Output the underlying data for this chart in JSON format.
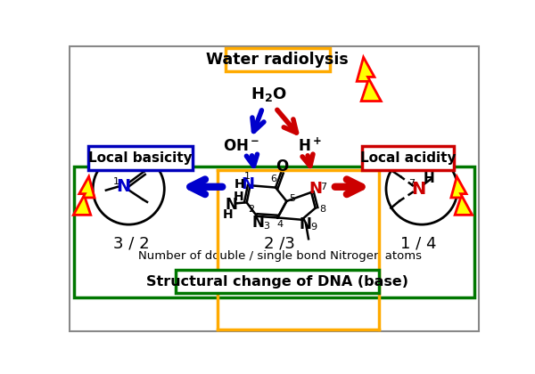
{
  "title": "Water radiolysis",
  "subtitle": "Structural change of DNA (base)",
  "label_basicity": "Local basicity",
  "label_acidity": "Local acidity",
  "label_bond_count": "Number of double / single bond Nitrogen atoms",
  "ratio_left": "3 / 2",
  "ratio_center": "2 /3",
  "ratio_right": "1 / 4",
  "bg_color": "#ffffff",
  "outer_box_color": "#ffaa00",
  "inner_box_color": "#007700",
  "basicity_box_color": "#0000bb",
  "acidity_box_color": "#cc0000",
  "arrow_blue": "#0000cc",
  "arrow_red": "#cc0000",
  "N_color_blue": "#0000cc",
  "N_color_red": "#cc0000",
  "border_color": "#888888"
}
